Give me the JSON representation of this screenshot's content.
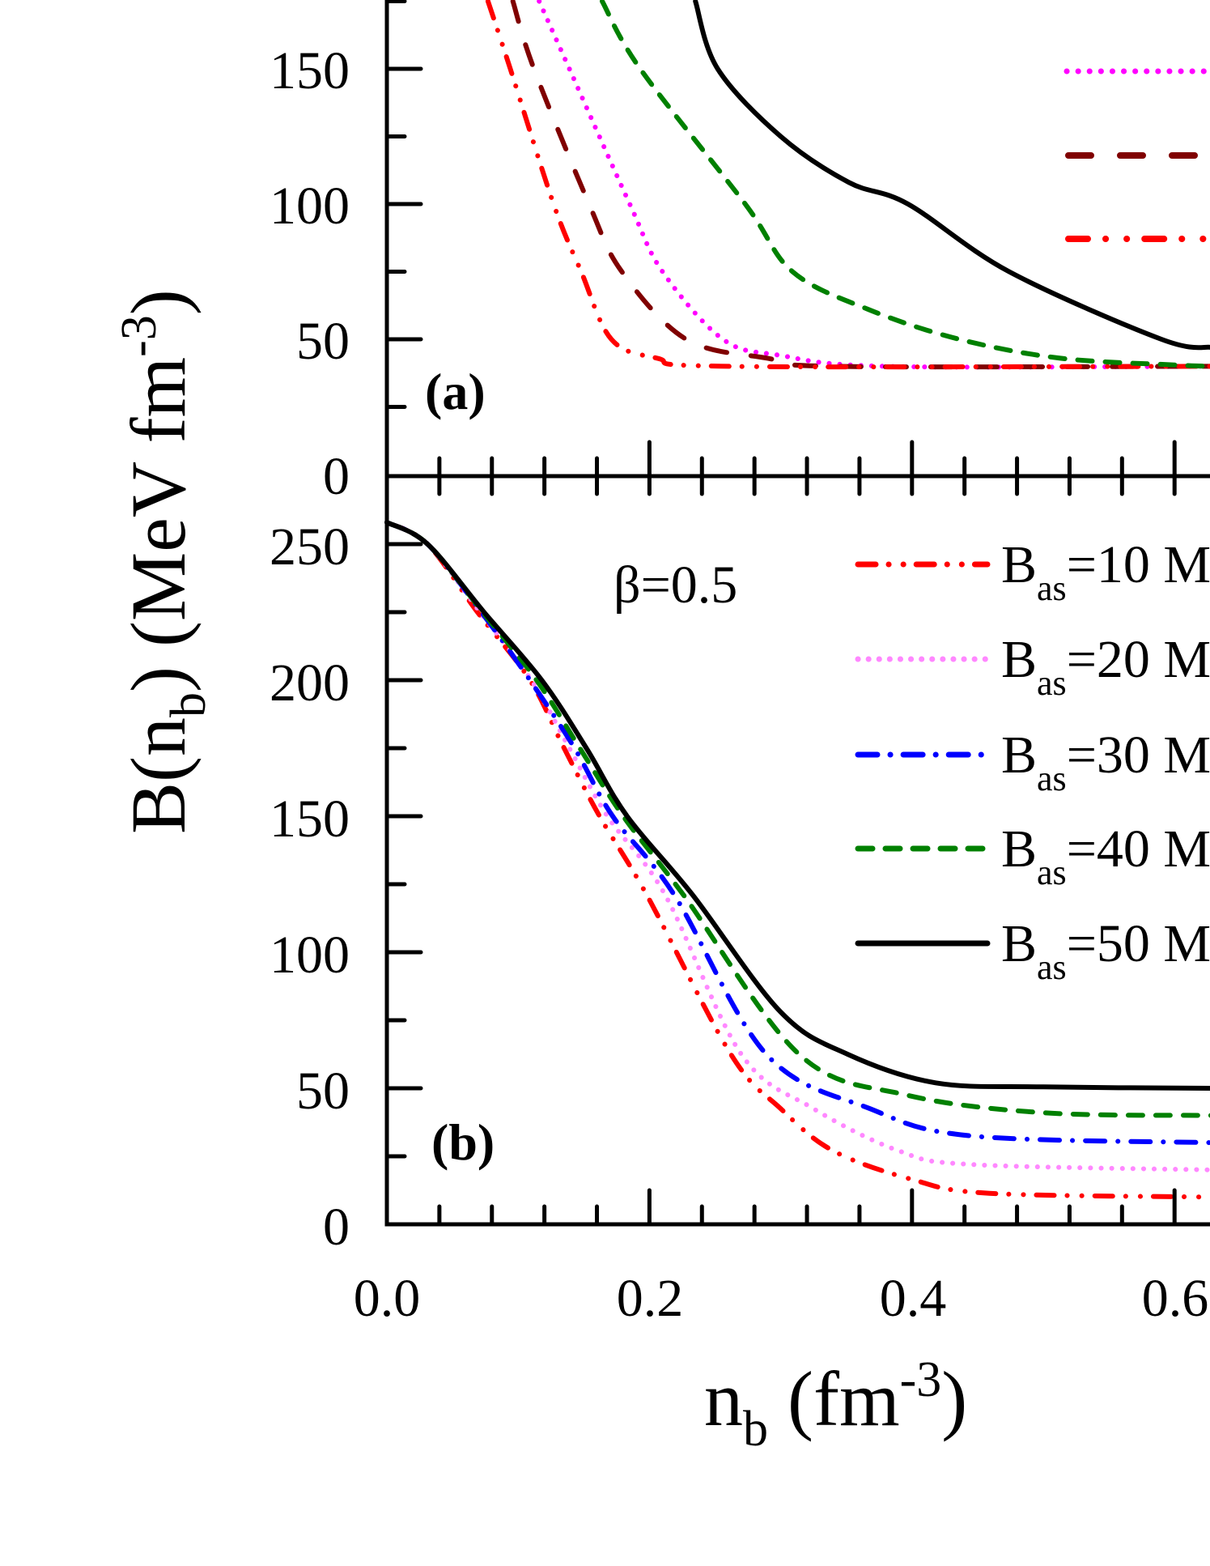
{
  "figure": {
    "xlabel_main": "n",
    "xlabel_sub": "b",
    "xlabel_unit": " (fm",
    "xlabel_sup": "-3",
    "xlabel_close": ")",
    "ylabel_main": "B(n",
    "ylabel_sub": "b",
    "ylabel_unit": ") (MeV fm",
    "ylabel_sup": "-3",
    "ylabel_close": ")",
    "x_tick_labels": [
      "0.0",
      "0.2",
      "0.4",
      "0.6"
    ],
    "panel_a": {
      "tag": "(a)",
      "y_tick_labels": [
        "0",
        "50",
        "100",
        "150"
      ]
    },
    "panel_b": {
      "tag": "(b)",
      "annotation": "β=0.5",
      "y_tick_labels": [
        "0",
        "50",
        "100",
        "150",
        "200",
        "250"
      ],
      "legend": [
        {
          "prefix": "B",
          "sub": "as",
          "text": "=10 M",
          "color": "#ff0000",
          "style": "dash-dot-dot"
        },
        {
          "prefix": "B",
          "sub": "as",
          "text": "=20 M",
          "color": "#ff88ff",
          "style": "dotted"
        },
        {
          "prefix": "B",
          "sub": "as",
          "text": "=30 M",
          "color": "#0000ff",
          "style": "dash-dot"
        },
        {
          "prefix": "B",
          "sub": "as",
          "text": "=40 M",
          "color": "#008000",
          "style": "short-dash"
        },
        {
          "prefix": "B",
          "sub": "as",
          "text": "=50 M",
          "color": "#000000",
          "style": "solid"
        }
      ]
    }
  },
  "chart_data": [
    {
      "type": "line",
      "title": "(a)",
      "xlabel": "n_b (fm^-3)",
      "ylabel": "B(n_b) (MeV fm^-3)",
      "xlim": [
        0.0,
        0.628
      ],
      "ylim": [
        0,
        175
      ],
      "x_ticks": [
        0.0,
        0.2,
        0.4,
        0.6
      ],
      "y_ticks": [
        0,
        50,
        100,
        150
      ],
      "legend_position": "upper right (labels cut off)",
      "series": [
        {
          "name": "magenta dotted",
          "color": "#ff00ff",
          "style": "dotted",
          "x": [
            0.116,
            0.139,
            0.185,
            0.21,
            0.256,
            0.3,
            0.38,
            0.628
          ],
          "y": [
            175,
            150,
            100,
            75,
            50,
            44,
            40,
            40
          ]
        },
        {
          "name": "dark red dashed",
          "color": "#800000",
          "style": "dashed",
          "x": [
            0.096,
            0.112,
            0.154,
            0.179,
            0.228,
            0.29,
            0.34,
            0.628
          ],
          "y": [
            175,
            150,
            100,
            75,
            50,
            43,
            40,
            40
          ]
        },
        {
          "name": "red dash-dot-dot",
          "color": "#ff0000",
          "style": "dash-dot-dot",
          "x": [
            0.077,
            0.094,
            0.127,
            0.148,
            0.171,
            0.206,
            0.26,
            0.628
          ],
          "y": [
            175,
            150,
            100,
            75,
            50,
            43,
            40,
            40
          ]
        },
        {
          "name": "green short-dash",
          "color": "#008000",
          "style": "short-dash",
          "x": [
            0.164,
            0.193,
            0.273,
            0.309,
            0.367,
            0.436,
            0.513,
            0.6,
            0.628
          ],
          "y": [
            175,
            150,
            100,
            75,
            61,
            50,
            43,
            40.5,
            40
          ]
        },
        {
          "name": "black solid",
          "color": "#000000",
          "style": "solid",
          "x": [
            0.235,
            0.252,
            0.3,
            0.352,
            0.397,
            0.474,
            0.59,
            0.628
          ],
          "y": [
            175,
            150,
            125,
            108,
            100,
            75,
            50,
            47
          ]
        }
      ]
    },
    {
      "type": "line",
      "title": "(b)",
      "annotation": "β=0.5",
      "xlabel": "n_b (fm^-3)",
      "ylabel": "B(n_b) (MeV fm^-3)",
      "xlim": [
        0.0,
        0.628
      ],
      "ylim": [
        0,
        275
      ],
      "x_ticks": [
        0.0,
        0.2,
        0.4,
        0.6
      ],
      "y_ticks": [
        0,
        50,
        100,
        150,
        200,
        250
      ],
      "legend_position": "upper right",
      "series": [
        {
          "name": "B_as=10 M",
          "color": "#ff0000",
          "style": "dash-dot-dot",
          "x": [
            0.0,
            0.031,
            0.069,
            0.109,
            0.135,
            0.162,
            0.198,
            0.262,
            0.3,
            0.34,
            0.4,
            0.459,
            0.628
          ],
          "y": [
            258,
            250,
            225,
            200,
            175,
            150,
            121,
            62.5,
            42.5,
            27,
            16.5,
            11.4,
            10
          ]
        },
        {
          "name": "B_as=20 M",
          "color": "#ff88ff",
          "style": "dotted",
          "x": [
            0.0,
            0.031,
            0.071,
            0.11,
            0.139,
            0.168,
            0.212,
            0.27,
            0.325,
            0.39,
            0.445,
            0.628
          ],
          "y": [
            258,
            250,
            225,
            200,
            175,
            150,
            121,
            62.5,
            42.5,
            27,
            22,
            20
          ]
        },
        {
          "name": "B_as=30 M",
          "color": "#0000ff",
          "style": "dash-dot",
          "x": [
            0.0,
            0.031,
            0.072,
            0.109,
            0.143,
            0.172,
            0.219,
            0.289,
            0.368,
            0.445,
            0.628
          ],
          "y": [
            258,
            250,
            225,
            200,
            175,
            150,
            121,
            62.5,
            42.5,
            32.5,
            30
          ]
        },
        {
          "name": "B_as=40 M",
          "color": "#008000",
          "style": "short-dash",
          "x": [
            0.0,
            0.031,
            0.073,
            0.114,
            0.147,
            0.18,
            0.226,
            0.314,
            0.395,
            0.5,
            0.628
          ],
          "y": [
            258,
            250,
            225,
            200,
            175,
            150,
            121,
            62.5,
            47.6,
            41,
            40
          ]
        },
        {
          "name": "B_as=50 M",
          "color": "#000000",
          "style": "solid",
          "x": [
            0.0,
            0.031,
            0.074,
            0.118,
            0.152,
            0.183,
            0.233,
            0.3,
            0.351,
            0.418,
            0.5,
            0.628
          ],
          "y": [
            258,
            250,
            225,
            200,
            175,
            150,
            121,
            78,
            62.5,
            52,
            50.5,
            50
          ]
        }
      ]
    }
  ]
}
